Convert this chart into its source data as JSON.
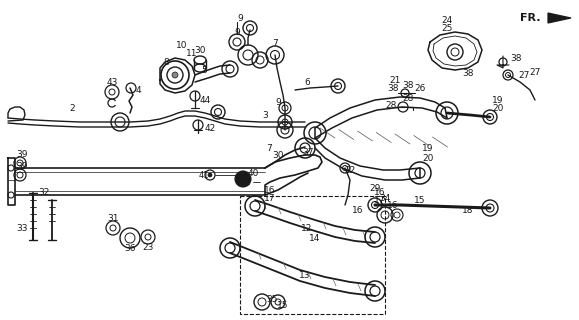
{
  "bg_color": "#ffffff",
  "line_color": "#1a1a1a",
  "fig_width": 5.79,
  "fig_height": 3.2,
  "dpi": 100
}
